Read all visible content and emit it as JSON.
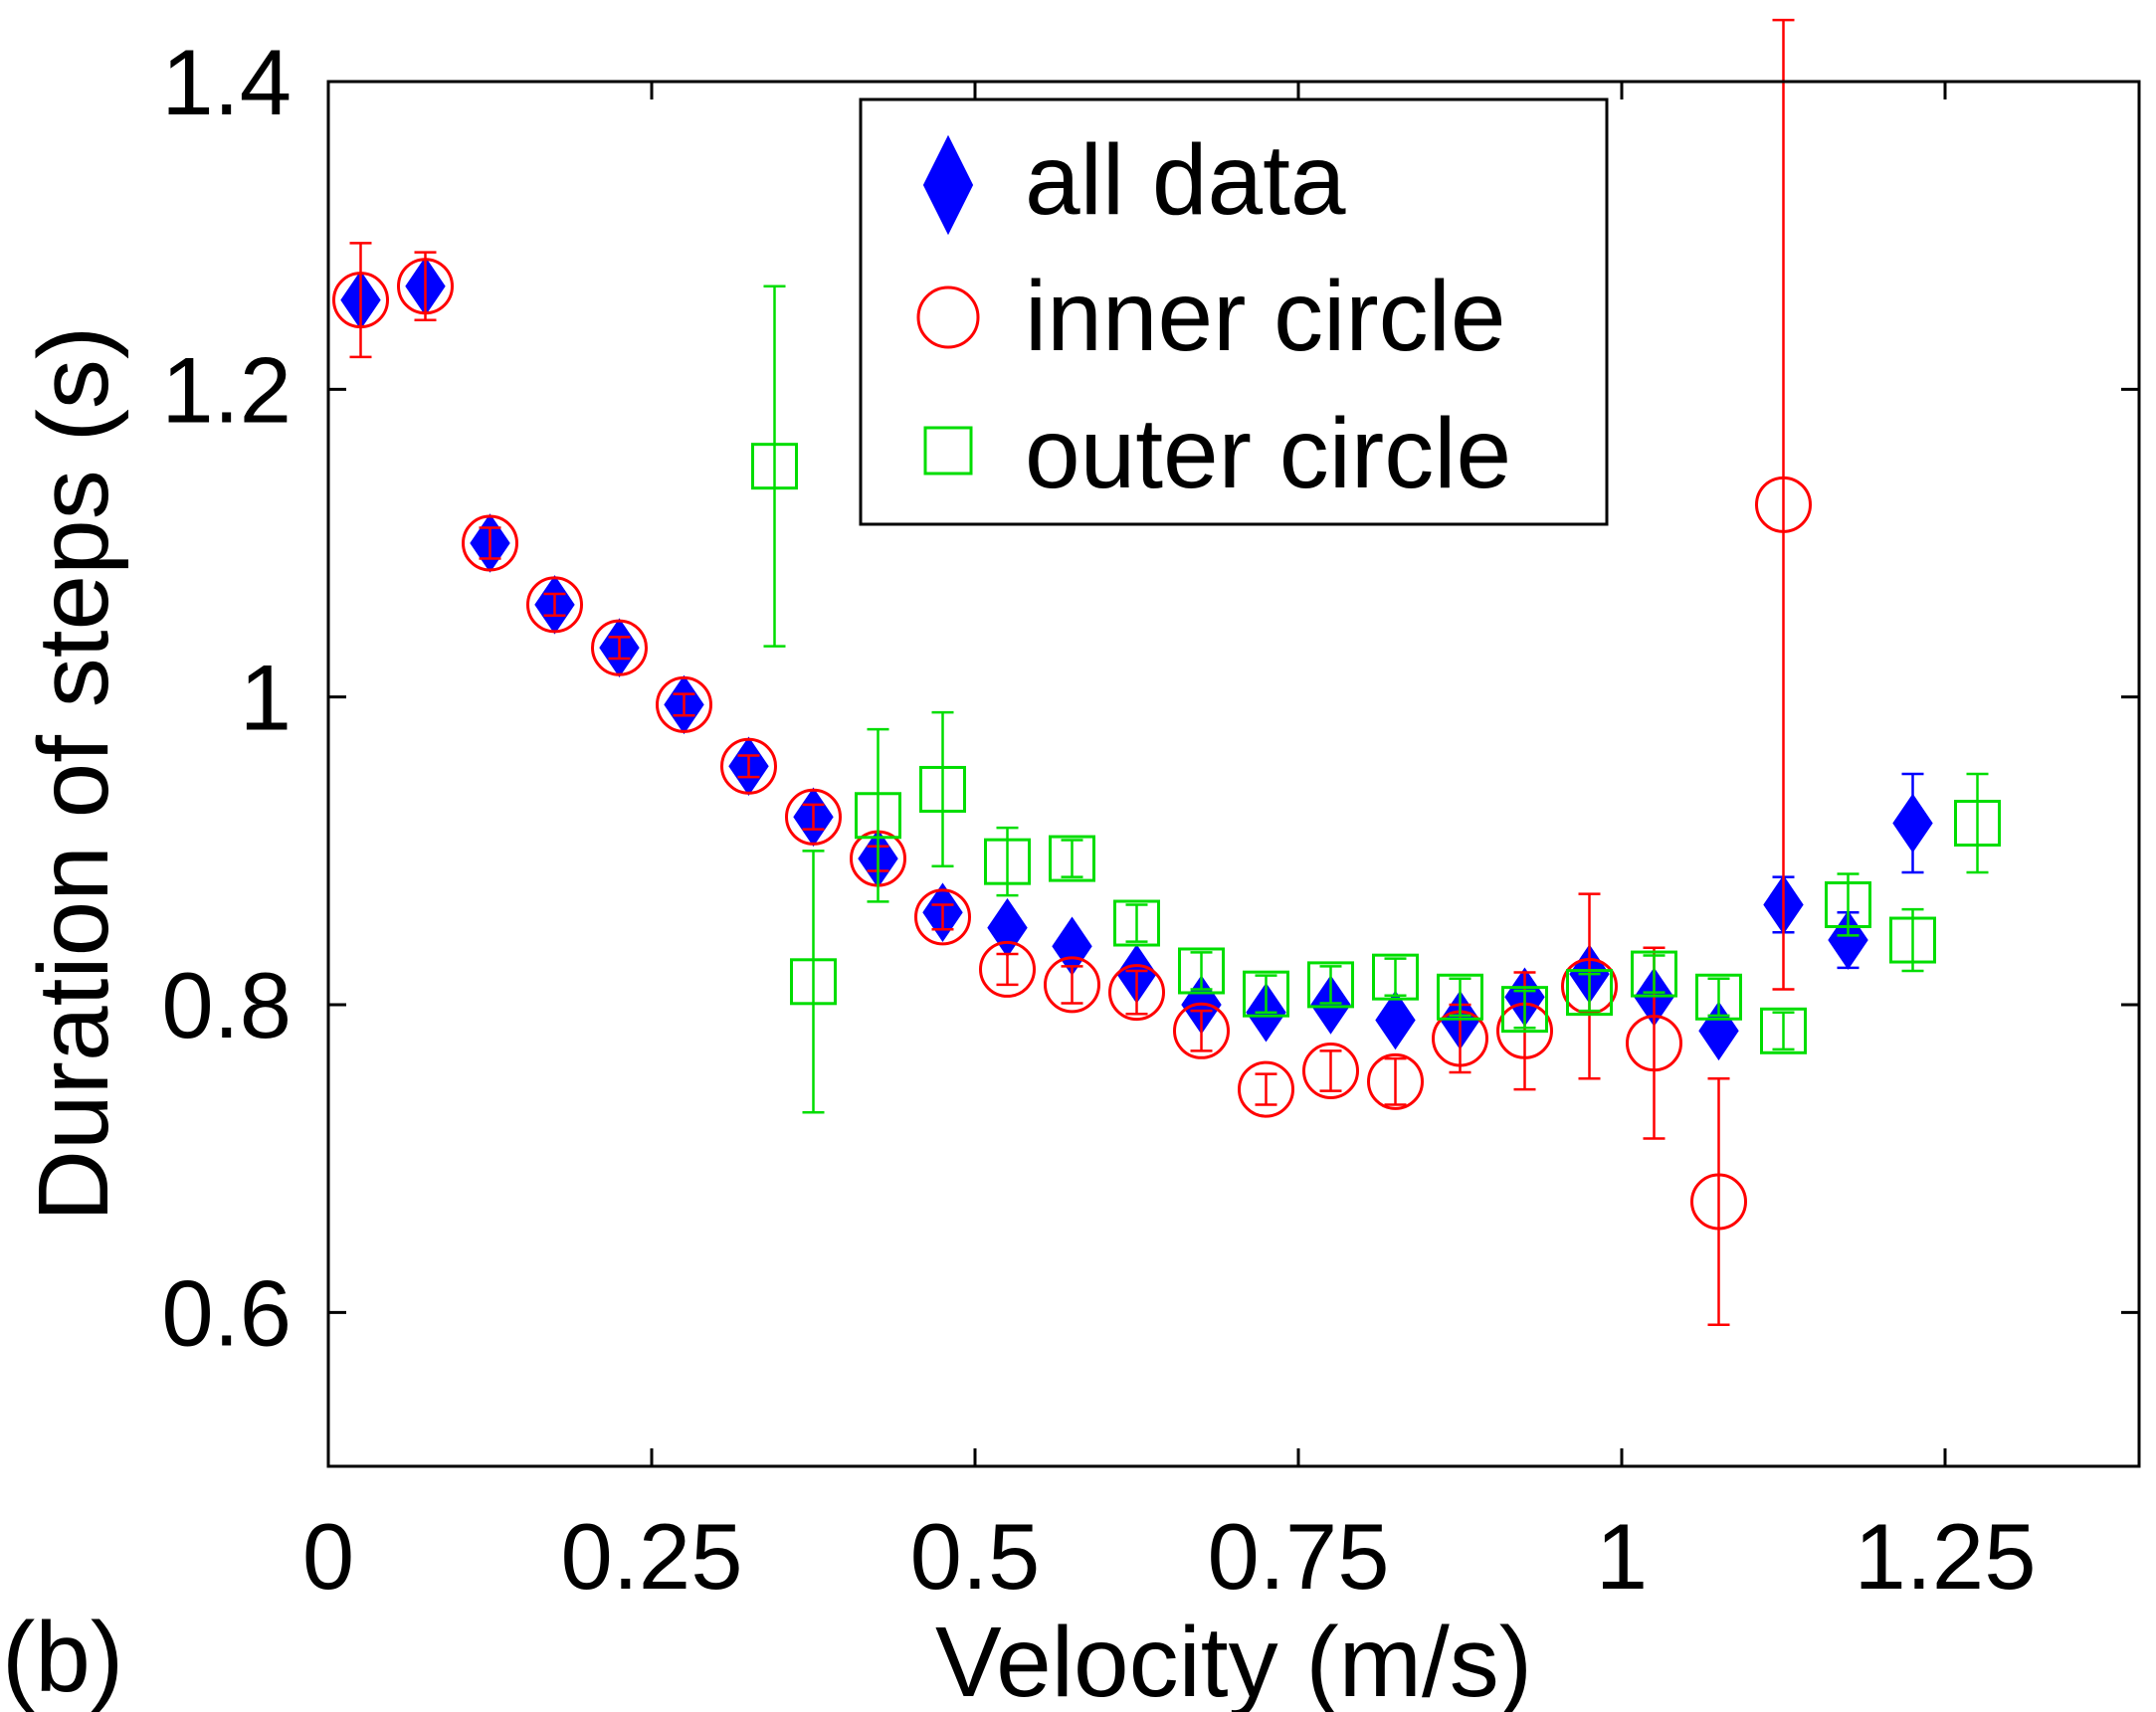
{
  "chart_data": {
    "type": "scatter",
    "panel_label": "(b)",
    "xlabel": "Velocity (m/s)",
    "ylabel": "Duration of steps (s)",
    "xlim": [
      0,
      1.4
    ],
    "ylim": [
      0.5,
      1.4
    ],
    "xticks": [
      0,
      0.25,
      0.5,
      0.75,
      1,
      1.25
    ],
    "xtick_labels": [
      "0",
      "0.25",
      "0.5",
      "0.75",
      "1",
      "1.25"
    ],
    "yticks": [
      0.6,
      0.8,
      1.0,
      1.2,
      1.4
    ],
    "ytick_labels": [
      "0.6",
      "0.8",
      "1",
      "1.2",
      "1.4"
    ],
    "grid": false,
    "legend_position": "top-center",
    "series": [
      {
        "name": "all data",
        "marker": "diamond",
        "color": "#0000ff",
        "points": [
          {
            "x": 0.025,
            "y": 1.258,
            "err": 0.005
          },
          {
            "x": 0.075,
            "y": 1.267,
            "err": 0.005
          },
          {
            "x": 0.125,
            "y": 1.1,
            "err": 0.005
          },
          {
            "x": 0.175,
            "y": 1.06,
            "err": 0.005
          },
          {
            "x": 0.225,
            "y": 1.032,
            "err": 0.005
          },
          {
            "x": 0.275,
            "y": 0.995,
            "err": 0.005
          },
          {
            "x": 0.325,
            "y": 0.955,
            "err": 0.005
          },
          {
            "x": 0.375,
            "y": 0.922,
            "err": 0.005
          },
          {
            "x": 0.425,
            "y": 0.895,
            "err": 0.005
          },
          {
            "x": 0.475,
            "y": 0.86,
            "err": 0.005
          },
          {
            "x": 0.525,
            "y": 0.85,
            "err": 0.005
          },
          {
            "x": 0.575,
            "y": 0.838,
            "err": 0.005
          },
          {
            "x": 0.625,
            "y": 0.82,
            "err": 0.005
          },
          {
            "x": 0.675,
            "y": 0.8,
            "err": 0.005
          },
          {
            "x": 0.725,
            "y": 0.795,
            "err": 0.005
          },
          {
            "x": 0.775,
            "y": 0.8,
            "err": 0.005
          },
          {
            "x": 0.825,
            "y": 0.79,
            "err": 0.005
          },
          {
            "x": 0.875,
            "y": 0.79,
            "err": 0.005
          },
          {
            "x": 0.925,
            "y": 0.805,
            "err": 0.005
          },
          {
            "x": 0.975,
            "y": 0.82,
            "err": 0.005
          },
          {
            "x": 1.025,
            "y": 0.805,
            "err": 0.005
          },
          {
            "x": 1.075,
            "y": 0.783,
            "err": 0.005
          },
          {
            "x": 1.125,
            "y": 0.865,
            "err": 0.018
          },
          {
            "x": 1.175,
            "y": 0.842,
            "err": 0.018
          },
          {
            "x": 1.225,
            "y": 0.918,
            "err": 0.032
          }
        ]
      },
      {
        "name": "inner circle",
        "marker": "circle",
        "color": "#ff0000",
        "points": [
          {
            "x": 0.025,
            "y": 1.258,
            "err": 0.037
          },
          {
            "x": 0.075,
            "y": 1.267,
            "err": 0.022
          },
          {
            "x": 0.125,
            "y": 1.1,
            "err": 0.01
          },
          {
            "x": 0.175,
            "y": 1.06,
            "err": 0.007
          },
          {
            "x": 0.225,
            "y": 1.032,
            "err": 0.007
          },
          {
            "x": 0.275,
            "y": 0.995,
            "err": 0.007
          },
          {
            "x": 0.325,
            "y": 0.955,
            "err": 0.007
          },
          {
            "x": 0.375,
            "y": 0.922,
            "err": 0.008
          },
          {
            "x": 0.425,
            "y": 0.895,
            "err": 0.008
          },
          {
            "x": 0.475,
            "y": 0.857,
            "err": 0.008
          },
          {
            "x": 0.525,
            "y": 0.823,
            "err": 0.01
          },
          {
            "x": 0.575,
            "y": 0.813,
            "err": 0.012
          },
          {
            "x": 0.625,
            "y": 0.808,
            "err": 0.014
          },
          {
            "x": 0.675,
            "y": 0.783,
            "err": 0.013
          },
          {
            "x": 0.725,
            "y": 0.745,
            "err": 0.01
          },
          {
            "x": 0.775,
            "y": 0.757,
            "err": 0.013
          },
          {
            "x": 0.825,
            "y": 0.75,
            "err": 0.015
          },
          {
            "x": 0.875,
            "y": 0.778,
            "err": 0.022
          },
          {
            "x": 0.925,
            "y": 0.783,
            "err": 0.038
          },
          {
            "x": 0.975,
            "y": 0.812,
            "err": 0.06
          },
          {
            "x": 1.025,
            "y": 0.775,
            "err": 0.062
          },
          {
            "x": 1.075,
            "y": 0.672,
            "err": 0.08
          },
          {
            "x": 1.125,
            "y": 1.125,
            "err": 0.315
          }
        ]
      },
      {
        "name": "outer circle",
        "marker": "square",
        "color": "#00dd00",
        "points": [
          {
            "x": 0.345,
            "y": 1.15,
            "err": 0.117
          },
          {
            "x": 0.375,
            "y": 0.815,
            "err": 0.085
          },
          {
            "x": 0.425,
            "y": 0.923,
            "err": 0.056
          },
          {
            "x": 0.475,
            "y": 0.94,
            "err": 0.05
          },
          {
            "x": 0.525,
            "y": 0.893,
            "err": 0.022
          },
          {
            "x": 0.575,
            "y": 0.895,
            "err": 0.012
          },
          {
            "x": 0.625,
            "y": 0.853,
            "err": 0.012
          },
          {
            "x": 0.675,
            "y": 0.822,
            "err": 0.012
          },
          {
            "x": 0.725,
            "y": 0.807,
            "err": 0.012
          },
          {
            "x": 0.775,
            "y": 0.813,
            "err": 0.012
          },
          {
            "x": 0.825,
            "y": 0.818,
            "err": 0.012
          },
          {
            "x": 0.875,
            "y": 0.805,
            "err": 0.012
          },
          {
            "x": 0.925,
            "y": 0.797,
            "err": 0.012
          },
          {
            "x": 0.975,
            "y": 0.808,
            "err": 0.012
          },
          {
            "x": 1.025,
            "y": 0.82,
            "err": 0.012
          },
          {
            "x": 1.075,
            "y": 0.805,
            "err": 0.012
          },
          {
            "x": 1.125,
            "y": 0.783,
            "err": 0.012
          },
          {
            "x": 1.175,
            "y": 0.865,
            "err": 0.02
          },
          {
            "x": 1.225,
            "y": 0.842,
            "err": 0.02
          },
          {
            "x": 1.275,
            "y": 0.918,
            "err": 0.032
          }
        ]
      }
    ]
  }
}
